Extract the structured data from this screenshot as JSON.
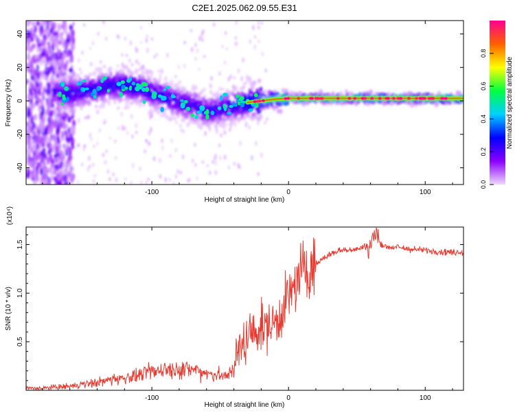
{
  "figure_title": "C2E1.2025.062.09.55.E31",
  "chart_data": [
    {
      "type": "heatmap",
      "title": "",
      "xlabel": "Height of straight line (km)",
      "ylabel": "Frequency (Hz)",
      "xlim": [
        -192,
        128
      ],
      "ylim": [
        -50,
        48
      ],
      "x_ticks": [
        -100,
        0,
        100
      ],
      "y_ticks": [
        -40,
        -20,
        0,
        20,
        40
      ],
      "colorbar": {
        "label": "Normalized spectral amplitude",
        "range": [
          0,
          1
        ],
        "ticks": [
          "0.0",
          "0.2",
          "0.4",
          "0.6",
          "0.8"
        ],
        "colors": [
          "#f0d8ff",
          "#8a00ff",
          "#0000ff",
          "#00d0ff",
          "#00ff40",
          "#ffff00",
          "#ff6000",
          "#ff0090"
        ]
      },
      "ridge": {
        "x": [
          -170,
          -160,
          -150,
          -140,
          -130,
          -120,
          -110,
          -100,
          -90,
          -80,
          -70,
          -60,
          -50,
          -40,
          -30,
          -20,
          -10,
          0,
          20,
          40,
          60,
          80,
          100,
          128
        ],
        "y": [
          5,
          4,
          6,
          7,
          9,
          9,
          8,
          5,
          2,
          -1,
          -3,
          -6,
          -5,
          -3,
          -1,
          0,
          1,
          1.5,
          1.5,
          1.5,
          1.5,
          1.5,
          1.5,
          1.5
        ],
        "amplitude": [
          0.25,
          0.3,
          0.35,
          0.35,
          0.35,
          0.35,
          0.35,
          0.35,
          0.3,
          0.3,
          0.3,
          0.3,
          0.3,
          0.35,
          0.5,
          0.7,
          0.75,
          0.8,
          0.85,
          0.9,
          0.9,
          0.9,
          0.9,
          0.9
        ]
      }
    },
    {
      "type": "line",
      "title": "",
      "xlabel": "Height of straight line (km)",
      "ylabel": "SNR (10 * v/v)",
      "scale_note": "(x10⁴)",
      "xlim": [
        -192,
        128
      ],
      "ylim": [
        0,
        1.68
      ],
      "x_ticks": [
        -100,
        0,
        100
      ],
      "y_ticks": [
        0.5,
        1.0,
        1.5
      ],
      "y_tick_labels": [
        "0.5",
        "1.0",
        "1.5"
      ],
      "color": "#e8392f",
      "series": [
        {
          "x": [
            -192,
            -180,
            -170,
            -160,
            -150,
            -140,
            -130,
            -120,
            -110,
            -100,
            -90,
            -80,
            -70,
            -60,
            -50,
            -45,
            -40,
            -35,
            -30,
            -25,
            -20,
            -15,
            -10,
            -5,
            0,
            5,
            10,
            15,
            20,
            25,
            30,
            40,
            50,
            60,
            62,
            70,
            80,
            90,
            100,
            110,
            120,
            128
          ],
          "values": [
            0.02,
            0.02,
            0.03,
            0.04,
            0.06,
            0.08,
            0.11,
            0.13,
            0.15,
            0.19,
            0.22,
            0.22,
            0.21,
            0.18,
            0.15,
            0.14,
            0.25,
            0.45,
            0.55,
            0.6,
            0.65,
            0.65,
            0.7,
            0.8,
            0.95,
            1.1,
            1.2,
            1.25,
            1.3,
            1.35,
            1.4,
            1.45,
            1.45,
            1.5,
            1.6,
            1.48,
            1.47,
            1.45,
            1.44,
            1.43,
            1.42,
            1.42
          ]
        }
      ]
    }
  ]
}
